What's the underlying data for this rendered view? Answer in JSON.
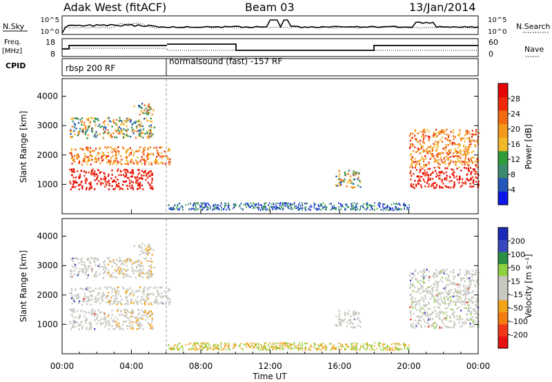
{
  "header": {
    "radar_title": "Adak West (fitACF)",
    "beam": "Beam 03",
    "date": "13/Jan/2014"
  },
  "panels": {
    "nsky": {
      "left_label": "N.Sky",
      "right_label": "N.Search",
      "left_ticks": [
        "10^5",
        "10^0"
      ],
      "right_ticks": [
        "10^5",
        "10^0"
      ]
    },
    "freq": {
      "left_label_line1": "Freq.",
      "left_label_line2": "[MHz]",
      "right_label": "Nave",
      "left_ticks": [
        "18",
        "8"
      ],
      "right_ticks": [
        "60",
        "0"
      ]
    },
    "cpid": {
      "label": "CPID",
      "programs": [
        "rbsp 200 RF",
        "normalsound (fast) -157 RF"
      ]
    }
  },
  "colors": {
    "power_scale": [
      "#0a17e8",
      "#2356b8",
      "#3b8a6e",
      "#2e9a3a",
      "#f0b92a",
      "#f39a1a",
      "#f36b10",
      "#ee2a0a",
      "#e40404"
    ],
    "velocity_scale": [
      "#e81010",
      "#f03818",
      "#f57a10",
      "#f2a418",
      "#c8c8c0",
      "#c8c8c0",
      "#8fd040",
      "#2a8f45",
      "#3848c0",
      "#1a2ab8"
    ]
  },
  "chart_data": [
    {
      "type": "heatmap",
      "panel": "power",
      "ylabel": "Slant Range [km]",
      "xlabel": "",
      "yticks": [
        1000,
        2000,
        3000,
        4000
      ],
      "ylim": [
        0,
        4600
      ],
      "xlim_hours": [
        0,
        24
      ],
      "colorbar": {
        "label": "Power [dB]",
        "ticks": [
          4,
          8,
          12,
          16,
          20,
          24,
          28
        ],
        "range": [
          0,
          32
        ]
      },
      "echo_regions": [
        {
          "t": [
            0.4,
            5.2
          ],
          "range_km": [
            850,
            1550
          ],
          "level": "high"
        },
        {
          "t": [
            0.4,
            6.2
          ],
          "range_km": [
            1700,
            2300
          ],
          "level": "high"
        },
        {
          "t": [
            0.4,
            5.3
          ],
          "range_km": [
            2600,
            3300
          ],
          "level": "medium"
        },
        {
          "t": [
            4.1,
            5.3
          ],
          "range_km": [
            3400,
            3800
          ],
          "level": "medium"
        },
        {
          "t": [
            15.7,
            17.2
          ],
          "range_km": [
            900,
            1500
          ],
          "level": "medium"
        },
        {
          "t": [
            20.0,
            24.0
          ],
          "range_km": [
            900,
            2900
          ],
          "level": "high"
        }
      ]
    },
    {
      "type": "heatmap",
      "panel": "velocity",
      "ylabel": "Slant Range [km]",
      "xlabel": "Time UT",
      "yticks": [
        1000,
        2000,
        3000,
        4000
      ],
      "ylim": [
        0,
        4600
      ],
      "xlim_hours": [
        0,
        24
      ],
      "xticks": [
        "00:00",
        "04:00",
        "08:00",
        "12:00",
        "16:00",
        "20:00",
        "00:00"
      ],
      "colorbar": {
        "label": "Velocity [m s⁻¹]",
        "ticks": [
          -200,
          -100,
          -50,
          -15,
          15,
          50,
          100,
          200
        ]
      }
    }
  ]
}
